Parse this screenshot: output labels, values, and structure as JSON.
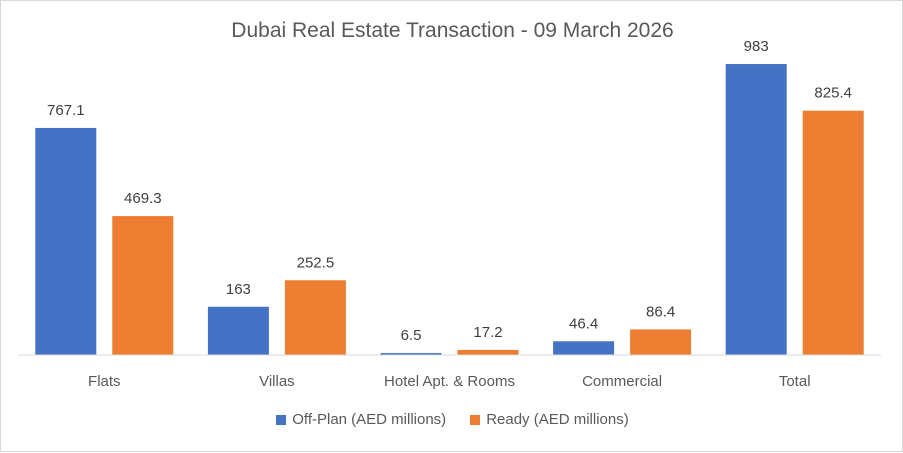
{
  "chart_data": {
    "type": "bar",
    "title": "Dubai Real Estate Transaction - 09 March 2026",
    "categories": [
      "Flats",
      "Villas",
      "Hotel Apt. & Rooms",
      "Commercial",
      "Total"
    ],
    "series": [
      {
        "name": "Off-Plan (AED millions)",
        "color": "#4472C4",
        "values": [
          767.1,
          163,
          6.5,
          46.4,
          983
        ],
        "labels": [
          "767.1",
          "163",
          "6.5",
          "46.4",
          "983"
        ]
      },
      {
        "name": "Ready (AED millions)",
        "color": "#ED7D31",
        "values": [
          469.3,
          252.5,
          17.2,
          86.4,
          825.4
        ],
        "labels": [
          "469.3",
          "252.5",
          "17.2",
          "86.4",
          "825.4"
        ]
      }
    ],
    "ylim": [
      0,
      1000
    ],
    "grid": false,
    "legend_position": "bottom",
    "data_labels": true
  }
}
